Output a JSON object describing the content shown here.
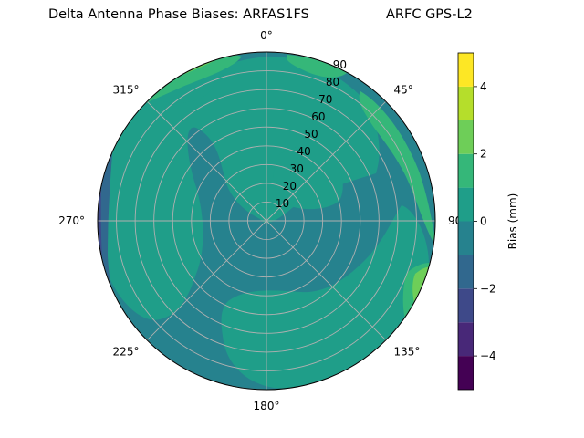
{
  "chart_data": {
    "type": "polar-contour",
    "title": "Delta Antenna Phase Biases: ARFAS1FS",
    "subtitle": "ARFC GPS-L2",
    "angular_ticks": [
      "0°",
      "45°",
      "90°",
      "135°",
      "180°",
      "225°",
      "270°",
      "315°"
    ],
    "angular_tick_values": [
      0,
      45,
      90,
      135,
      180,
      225,
      270,
      315
    ],
    "radial_ticks": [
      "10",
      "20",
      "30",
      "40",
      "50",
      "60",
      "70",
      "80",
      "90"
    ],
    "radial_tick_values": [
      10,
      20,
      30,
      40,
      50,
      60,
      70,
      80,
      90
    ],
    "radial_range": [
      0,
      90
    ],
    "theta_zero": "top",
    "theta_direction": "clockwise",
    "grid": true,
    "colorbar": {
      "label": "Bias (mm)",
      "range": [
        -5,
        5
      ],
      "levels": [
        -5,
        -4,
        -3,
        -2,
        -1,
        0,
        1,
        2,
        3,
        4,
        5
      ],
      "tick_labels": [
        "−4",
        "−2",
        "0",
        "2",
        "4"
      ],
      "tick_values": [
        -4,
        -2,
        0,
        2,
        4
      ],
      "colormap": "viridis",
      "colors": [
        "#440154",
        "#482878",
        "#3e4989",
        "#31688e",
        "#26828e",
        "#1f9e89",
        "#35b779",
        "#6ece58",
        "#b5de2b",
        "#fde725"
      ]
    },
    "regions": [
      {
        "band": [
          -1,
          0
        ],
        "color": "#26828e",
        "description": "background / center band"
      },
      {
        "band": [
          0,
          1
        ],
        "color": "#1f9e89",
        "description": "most of the field"
      },
      {
        "band": [
          1,
          2
        ],
        "color": "#35b779",
        "description": "patches near rim"
      },
      {
        "band": [
          2,
          3
        ],
        "color": "#6ece58",
        "description": "small patches at rim"
      },
      {
        "band": [
          -2,
          -1
        ],
        "color": "#31688e",
        "description": "west rim"
      },
      {
        "band": [
          -3,
          -2
        ],
        "color": "#3e4989",
        "description": "far west rim"
      }
    ]
  }
}
